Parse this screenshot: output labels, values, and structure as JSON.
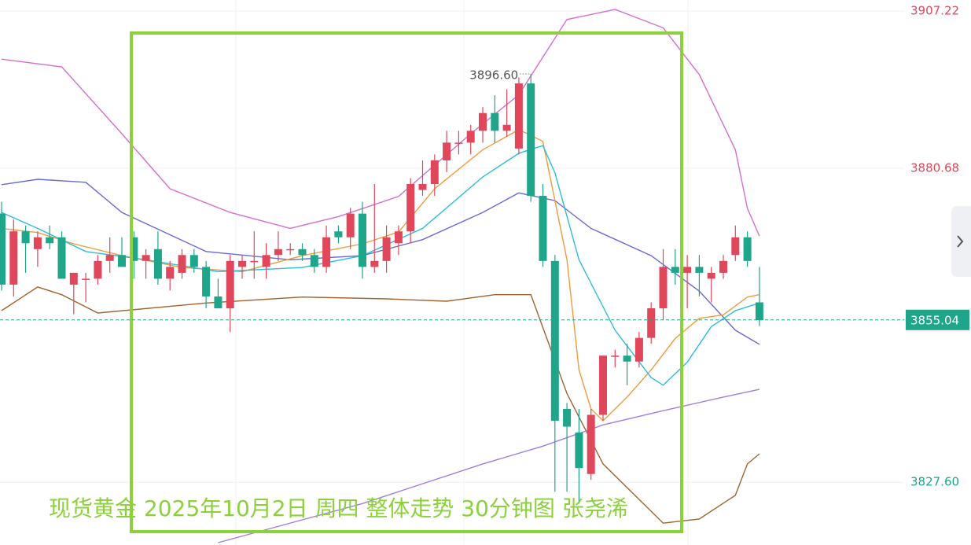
{
  "chart_data": {
    "type": "candlestick",
    "title": "现货黄金 2025年10月2日 周四 整体走势 30分钟图 张尧浠",
    "up_color": "#e0475a",
    "down_color": "#1fa58a",
    "ylim": [
      3817,
      3909.1
    ],
    "yticks": [
      3907.22,
      3880.68,
      {
        "value": 3827.6,
        "label": "3827.60"
      }
    ],
    "grid": true,
    "last_price": 3855.04,
    "high_label": {
      "value": 3896.6,
      "label": "3896.60"
    },
    "candles": {
      "open": [
        3873,
        3861,
        3870,
        3867,
        3869,
        3869,
        3861,
        3862,
        3862,
        3865,
        3866,
        3869,
        3865,
        3867,
        3862,
        3863,
        3866,
        3864,
        3859,
        3857,
        3864,
        3865,
        3864,
        3866,
        3867,
        3867,
        3866,
        3864,
        3870,
        3869,
        3873,
        3864,
        3865,
        3868,
        3870,
        3877,
        3878,
        3882,
        3885,
        3885,
        3887,
        3890,
        3887,
        3884,
        3895,
        3876,
        3865,
        3840,
        3836,
        3829,
        3839,
        3849,
        3849,
        3848,
        3852,
        3857,
        3864,
        3863,
        3864,
        3862,
        3863,
        3866,
        3869,
        3858
      ],
      "high": [
        3875,
        3872,
        3871,
        3870,
        3871,
        3870,
        3863,
        3863,
        3866,
        3869,
        3869,
        3870,
        3867,
        3870,
        3865,
        3867,
        3867,
        3865,
        3862,
        3866,
        3866,
        3870,
        3868,
        3870,
        3868,
        3868,
        3867,
        3871,
        3871,
        3874,
        3875,
        3878,
        3871,
        3871,
        3879,
        3882,
        3883,
        3887,
        3887,
        3888,
        3891,
        3893,
        3894,
        3896,
        3896.6,
        3878,
        3866,
        3841,
        3840,
        3840,
        3849,
        3850,
        3851,
        3853,
        3858,
        3867,
        3867,
        3866,
        3866,
        3864,
        3866,
        3871,
        3870,
        3864
      ],
      "low": [
        3860,
        3859,
        3863,
        3864,
        3867,
        3862,
        3856,
        3858,
        3861,
        3863,
        3864,
        3862,
        3862,
        3861,
        3860,
        3862,
        3863,
        3857,
        3857,
        3853,
        3862,
        3862,
        3862,
        3865,
        3866,
        3865,
        3863,
        3863,
        3868,
        3867,
        3862,
        3863,
        3863,
        3866,
        3868,
        3876,
        3876,
        3880,
        3883,
        3883,
        3885,
        3885,
        3886,
        3883,
        3875,
        3864,
        3826,
        3826,
        3824,
        3828,
        3838,
        3847,
        3844,
        3847,
        3851,
        3855,
        3861,
        3857,
        3859,
        3858,
        3862,
        3865,
        3864,
        3854
      ],
      "close": [
        3861,
        3870,
        3868,
        3869,
        3868,
        3862,
        3863,
        3862,
        3865,
        3866,
        3864,
        3865,
        3866,
        3862,
        3864,
        3866,
        3864,
        3859,
        3857,
        3865,
        3865,
        3865,
        3866,
        3867,
        3867,
        3866,
        3864,
        3869,
        3869,
        3873,
        3864,
        3865,
        3869,
        3870,
        3878,
        3878,
        3882,
        3885,
        3885,
        3887,
        3890,
        3887,
        3888,
        3895,
        3876,
        3865,
        3838,
        3837,
        3830,
        3839,
        3849,
        3849,
        3848,
        3852,
        3857,
        3864,
        3863,
        3864,
        3863,
        3863,
        3865,
        3869,
        3865,
        3855
      ]
    },
    "series": [
      {
        "color": "#d46fcf",
        "x": [
          0,
          5,
          10,
          14,
          19,
          24,
          28,
          33,
          39,
          43,
          47,
          51,
          55,
          58,
          61,
          62,
          63
        ],
        "values": [
          3899.1,
          3897.8,
          3886.5,
          3877.2,
          3873.2,
          3870.5,
          3872.5,
          3875.9,
          3886.5,
          3893.1,
          3905.8,
          3907.5,
          3904.4,
          3896.5,
          3883.8,
          3873.9,
          3869.2
        ]
      },
      {
        "color": "#6a6ad8",
        "x": [
          0,
          3,
          7,
          10,
          17,
          24,
          30,
          35,
          40,
          43,
          46,
          49,
          54,
          58,
          61,
          63
        ],
        "values": [
          3877.9,
          3878.8,
          3878.3,
          3873.2,
          3866.6,
          3865.2,
          3865.9,
          3868.6,
          3873.2,
          3876.5,
          3875.2,
          3870.5,
          3865.9,
          3859.9,
          3853.3,
          3850.9
        ]
      },
      {
        "color": "#a0622e",
        "x": [
          0,
          3,
          5,
          8,
          17,
          25,
          32,
          37,
          41,
          44,
          47,
          50,
          55,
          58,
          61,
          62,
          63
        ],
        "values": [
          3856.6,
          3860.6,
          3859.3,
          3856.2,
          3857.9,
          3858.9,
          3858.6,
          3858.2,
          3859.3,
          3859.3,
          3842.6,
          3830.7,
          3820.7,
          3821.4,
          3825.4,
          3830.7,
          3832.4
        ]
      },
      {
        "color": "#f09a3e",
        "x": [
          0,
          3,
          6,
          10,
          15,
          20,
          25,
          30,
          33,
          36,
          40,
          43,
          45,
          47,
          48,
          49,
          50,
          52,
          54,
          56,
          58,
          60,
          62,
          63
        ],
        "values": [
          3870.5,
          3869.8,
          3867.9,
          3865.9,
          3863.9,
          3863.2,
          3865.9,
          3867.9,
          3869.9,
          3877.2,
          3883.8,
          3887.2,
          3885.2,
          3865.2,
          3846.6,
          3840,
          3838,
          3842,
          3846.6,
          3851.9,
          3855.3,
          3855.9,
          3858.9,
          3859.3
        ]
      },
      {
        "color": "#2bbcd8",
        "x": [
          0,
          3,
          7,
          12,
          18,
          25,
          30,
          35,
          40,
          43,
          45,
          46,
          48,
          51,
          54,
          55,
          57,
          59,
          61,
          63
        ],
        "values": [
          3873.2,
          3870.5,
          3866.6,
          3865.2,
          3863.2,
          3863.9,
          3865.9,
          3870.5,
          3879.2,
          3883.2,
          3884.5,
          3879.9,
          3865.2,
          3853.3,
          3845.3,
          3844,
          3847.9,
          3853.9,
          3856.6,
          3857.9
        ]
      },
      {
        "color": "#a07ee0",
        "x": [
          18,
          30,
          40,
          45,
          50,
          55,
          60,
          63
        ],
        "values": [
          3817.4,
          3824,
          3830.7,
          3833.7,
          3837.3,
          3839.7,
          3842,
          3843.3
        ]
      }
    ]
  }
}
